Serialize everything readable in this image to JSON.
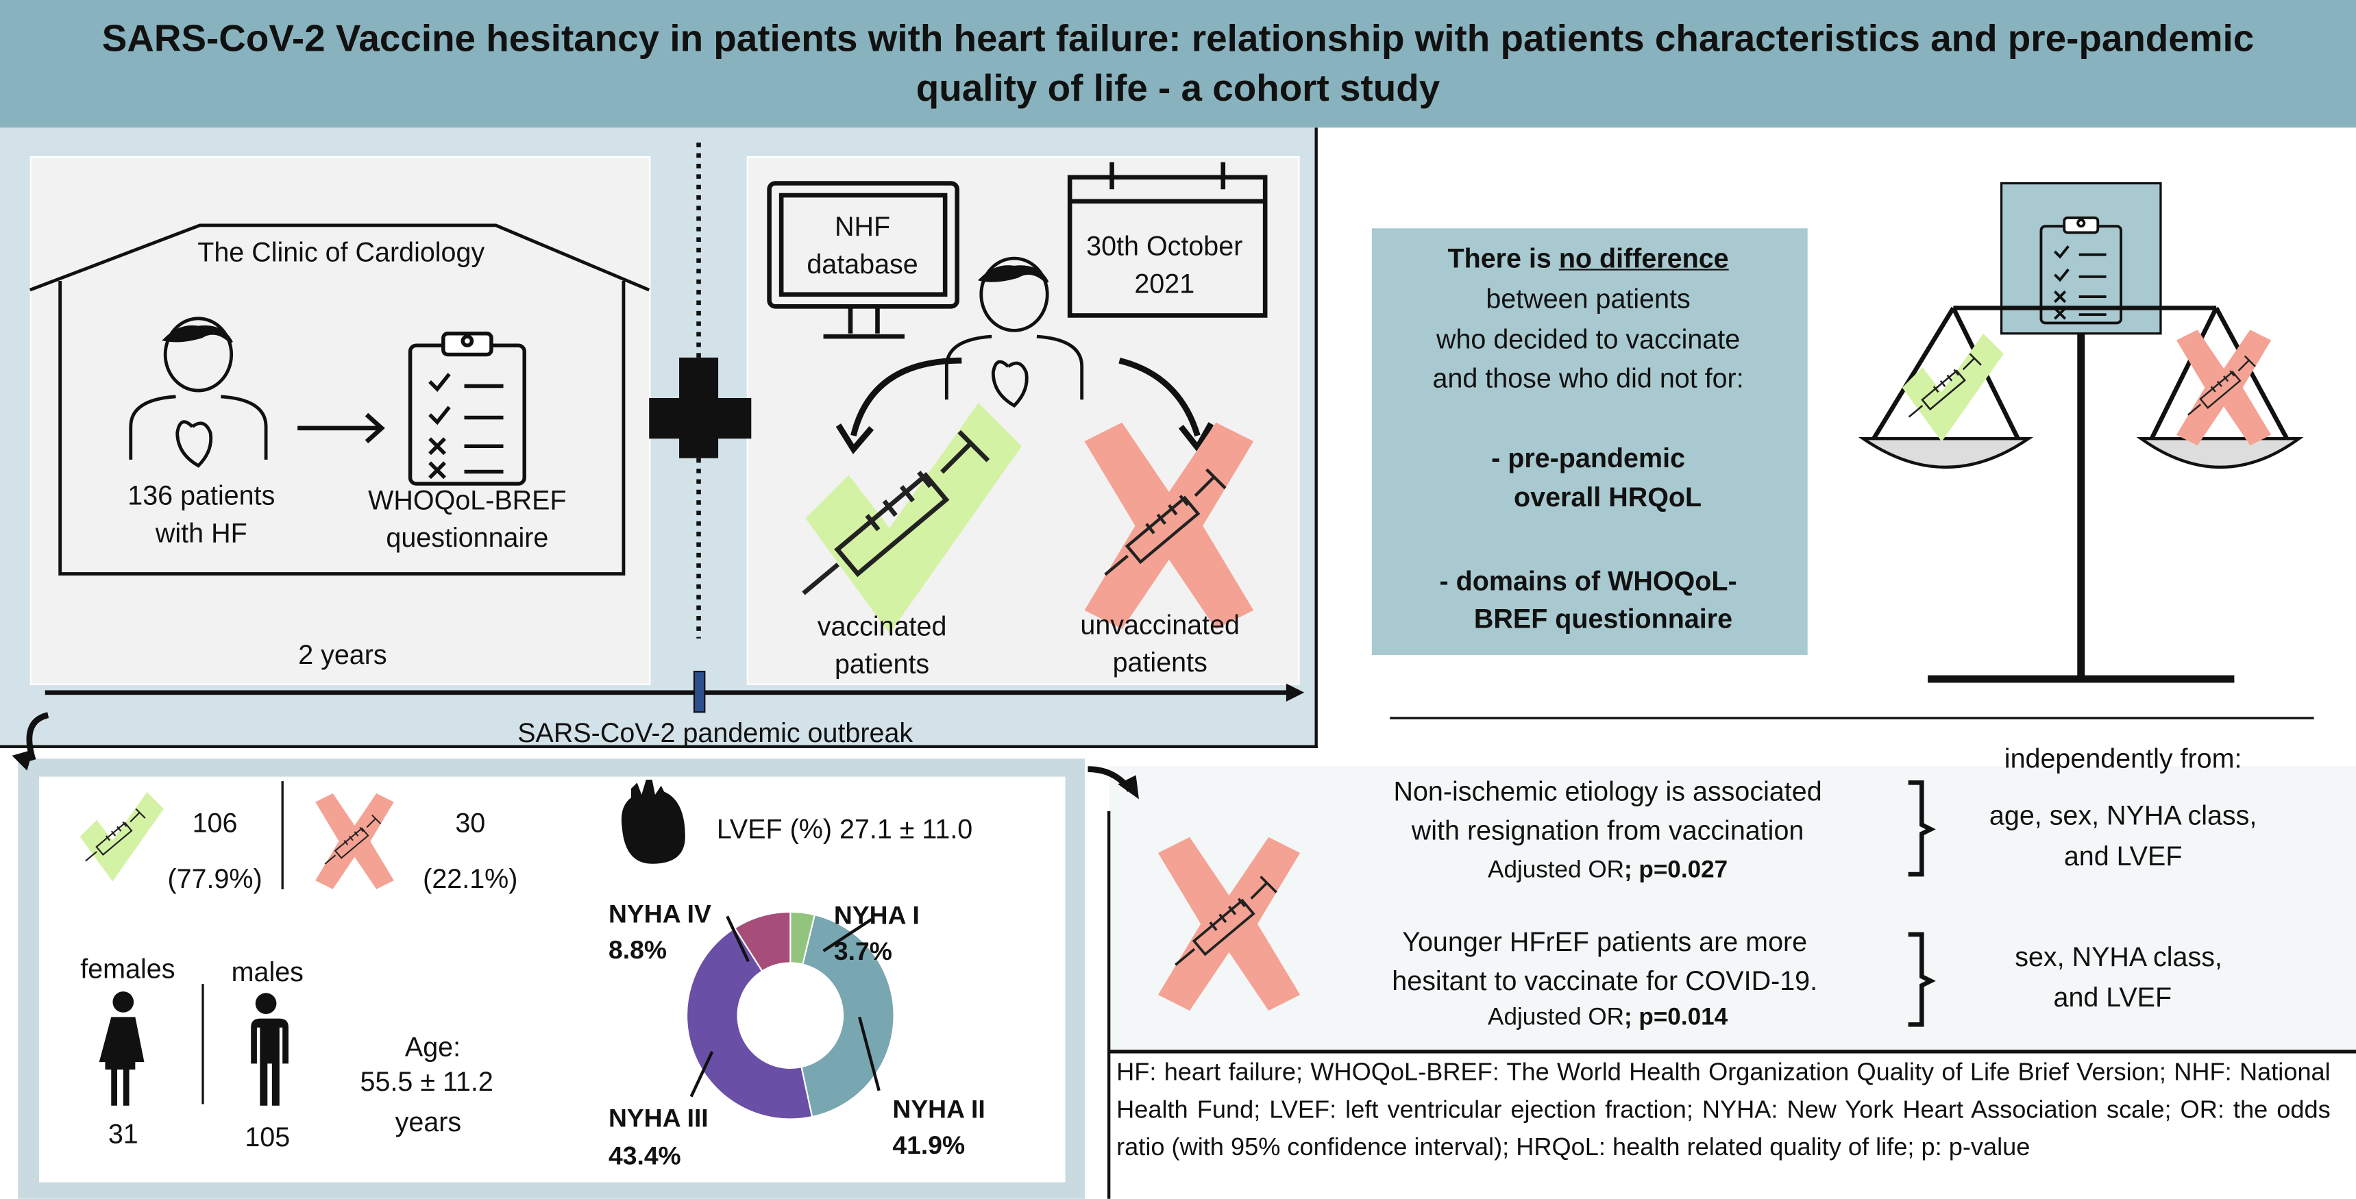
{
  "title": {
    "line1": "SARS-CoV-2 Vaccine hesitancy in patients with heart failure: relationship with patients characteristics and pre-pandemic",
    "line2": "quality of life - a cohort study"
  },
  "study_design": {
    "clinic_label": "The Clinic of Cardiology",
    "patients_line1": "136 patients",
    "patients_line2": "with HF",
    "questionnaire_line1": "WHOQoL-BREF",
    "questionnaire_line2": "questionnaire",
    "database_line1": "NHF",
    "database_line2": "database",
    "date_line1": "30th October",
    "date_line2": "2021",
    "vaccinated_line1": "vaccinated",
    "vaccinated_line2": "patients",
    "unvaccinated_line1": "unvaccinated",
    "unvaccinated_line2": "patients",
    "duration": "2 years",
    "timeline_label": "SARS-CoV-2 pandemic outbreak"
  },
  "finding_box": {
    "line1_prefix": "There is ",
    "line1_emph": "no difference",
    "line2": "between patients",
    "line3": "who decided to vaccinate",
    "line4": "and those who did not for:",
    "item1_line1": "-   pre-pandemic",
    "item1_line2": "overall HRQoL",
    "item2_line1": "-   domains of WHOQoL-",
    "item2_line2": "BREF questionnaire"
  },
  "stats": {
    "vaccinated_count": "106",
    "vaccinated_pct": "(77.9%)",
    "unvaccinated_count": "30",
    "unvaccinated_pct": "(22.1%)",
    "lvef": "LVEF (%) 27.1 ± 11.0",
    "females_label": "females",
    "males_label": "males",
    "females_count": "31",
    "males_count": "105",
    "age_label": "Age:",
    "age_value": "55.5 ± 11.2",
    "age_unit": "years"
  },
  "chart_data": {
    "type": "pie",
    "variant": "donut",
    "categories": [
      "NYHA I",
      "NYHA II",
      "NYHA III",
      "NYHA IV"
    ],
    "values": [
      3.7,
      41.9,
      43.4,
      8.8
    ],
    "labels": [
      "3.7%",
      "41.9%",
      "43.4%",
      "8.8%"
    ],
    "colors": [
      "#93c47d",
      "#78a6b1",
      "#6a4fa7",
      "#a64d79"
    ],
    "title": "",
    "legend": "none (callout labels)"
  },
  "results": {
    "independently_label": "independently from:",
    "r1_line1": "Non-ischemic etiology is associated",
    "r1_line2": "with resignation from vaccination",
    "r1_line3_prefix": "Adjusted OR",
    "r1_line3_p": "; p=0.027",
    "r1_cov_line1": "age, sex, NYHA class,",
    "r1_cov_line2": "and LVEF",
    "r2_line1": "Younger HFrEF patients are more",
    "r2_line2": "hesitant to vaccinate for COVID-19.",
    "r2_line3_prefix": "Adjusted OR",
    "r2_line3_p": "; p=0.014",
    "r2_cov_line1": "sex, NYHA class,",
    "r2_cov_line2": "and LVEF"
  },
  "footnote": "HF: heart failure; WHOQoL-BREF: The World Health Organization Quality of Life Brief Version; NHF: National Health Fund; LVEF: left ventricular ejection fraction; NYHA: New York Heart Association scale;  OR: the odds ratio (with 95% confidence interval); HRQoL: health related quality of life; p: p-value",
  "colors": {
    "title_bar": "#88b3be",
    "panel_bg": "#d3e2e8",
    "finding_box": "#a9c9d0",
    "check_green": "#d4f2a4",
    "cross_red": "#f4a293"
  }
}
